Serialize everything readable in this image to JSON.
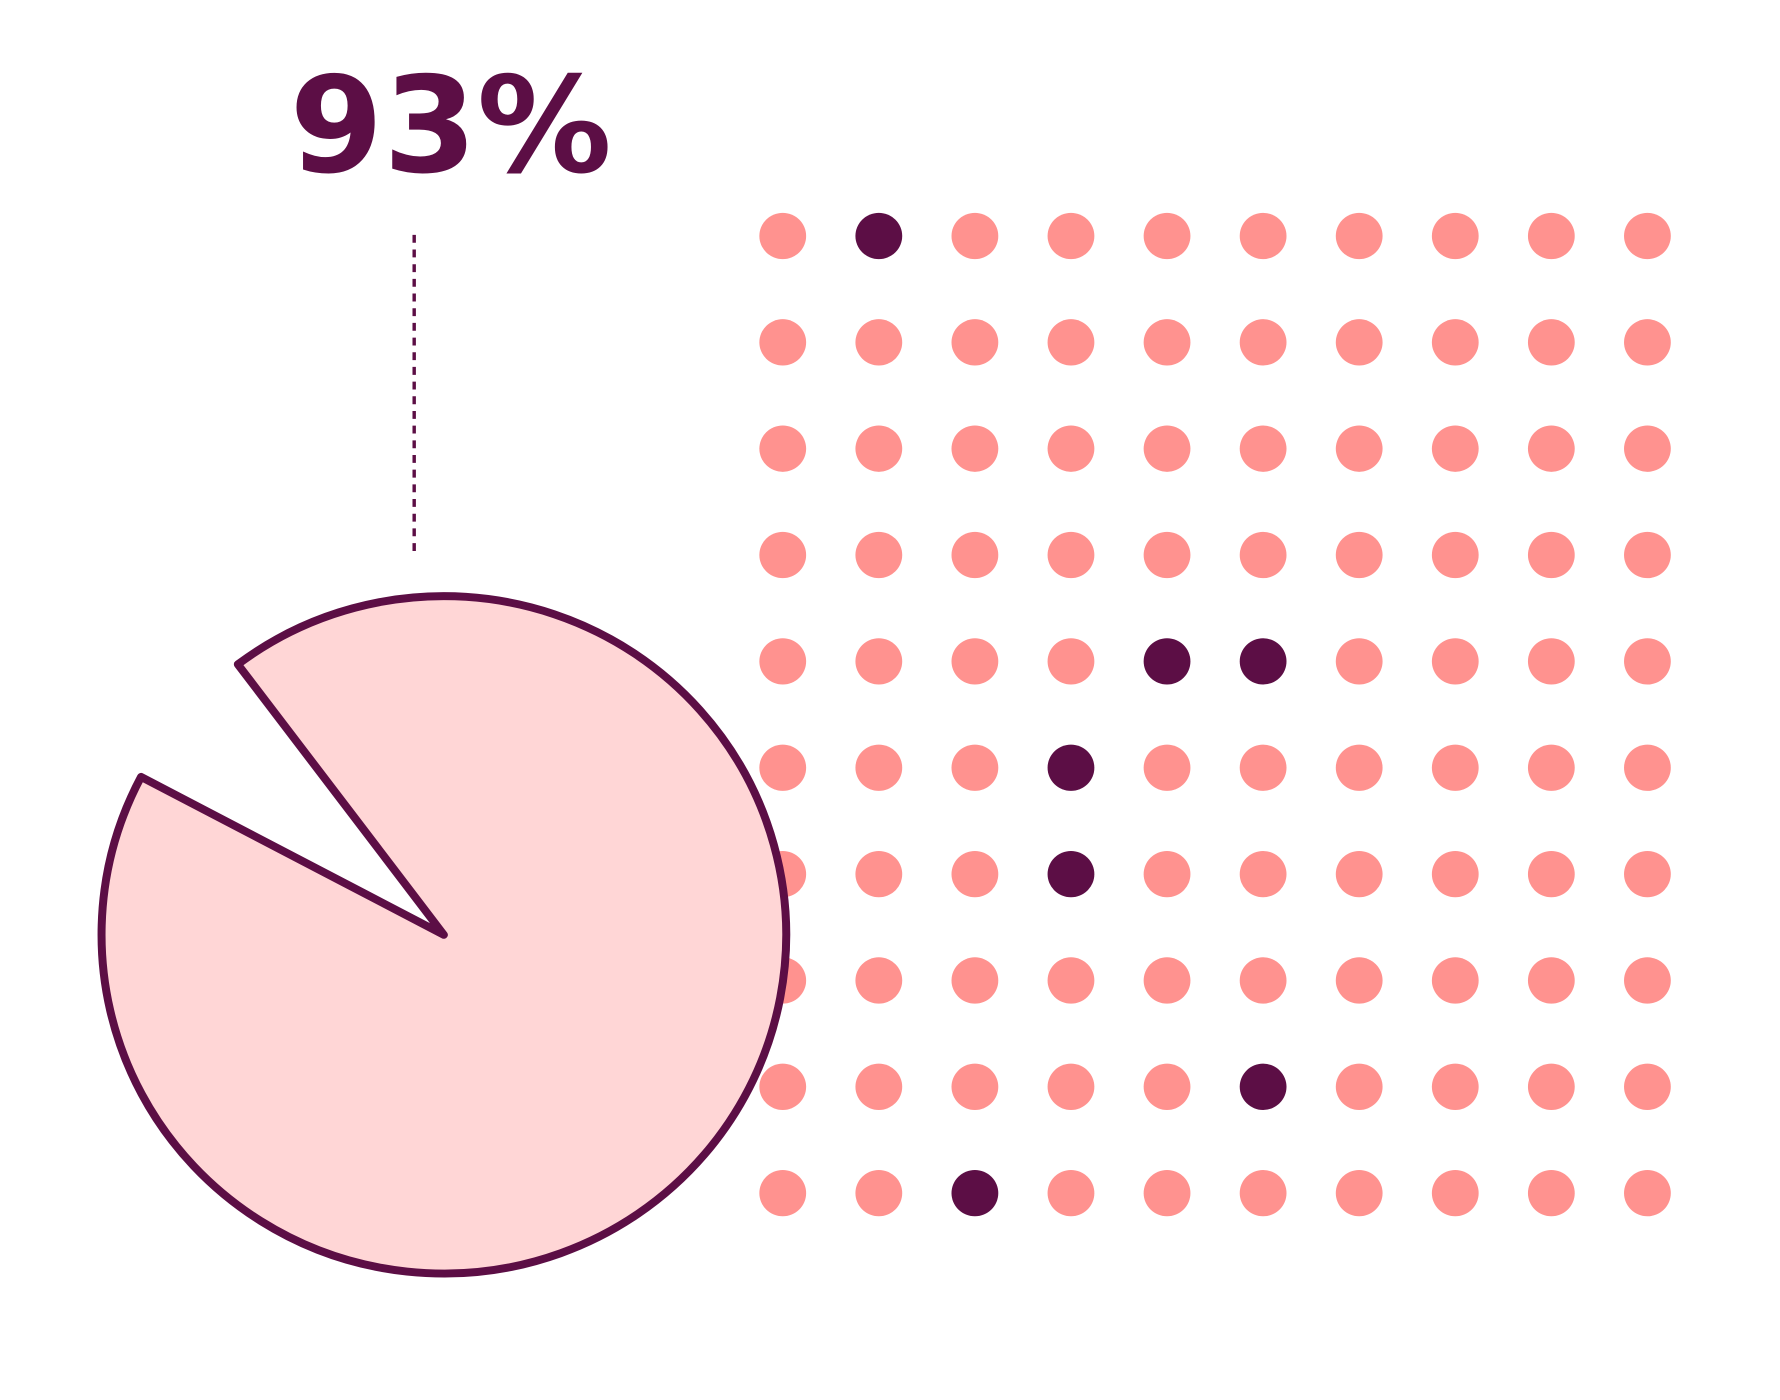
{
  "chart_data": {
    "type": "pie",
    "values": [
      93
    ],
    "value_labels": [
      "93%"
    ],
    "color": "#ffd6d6",
    "edge_color": "#5c0e45"
  }
}
